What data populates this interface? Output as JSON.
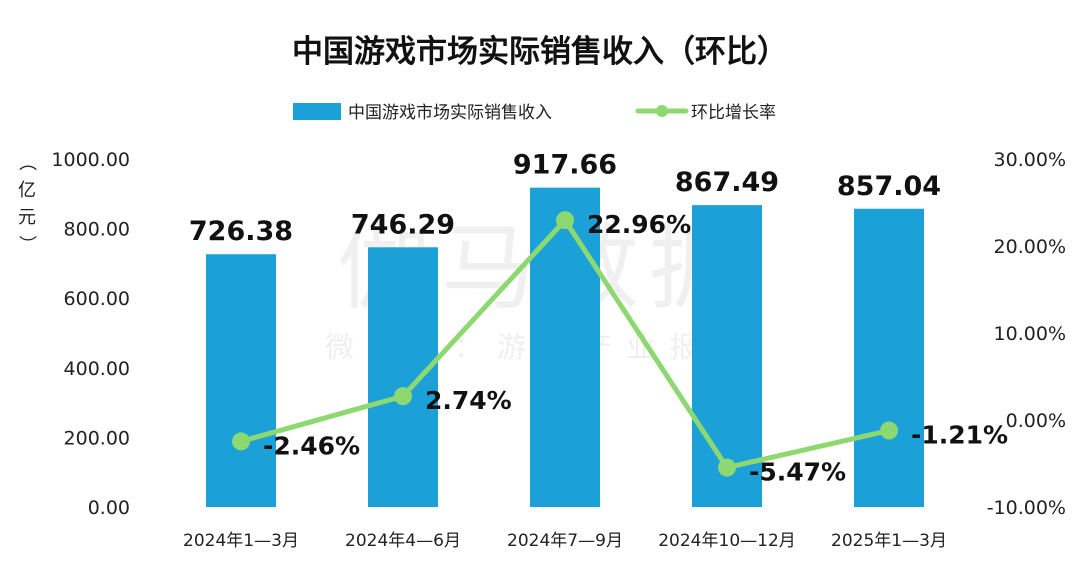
{
  "chart_data": {
    "type": "bar",
    "title": "中国游戏市场实际销售收入（环比）",
    "categories": [
      "2024年1—3月",
      "2024年4—6月",
      "2024年7—9月",
      "2024年10—12月",
      "2025年1—3月"
    ],
    "series": [
      {
        "name": "中国游戏市场实际销售收入",
        "type": "bar",
        "axis": "left",
        "color": "#1BA1D8",
        "values": [
          726.38,
          746.29,
          917.66,
          867.49,
          857.04
        ],
        "labels": [
          "726.38",
          "746.29",
          "917.66",
          "867.49",
          "857.04"
        ]
      },
      {
        "name": "环比增长率",
        "type": "line",
        "axis": "right",
        "color": "#8DD870",
        "values": [
          -2.46,
          2.74,
          22.96,
          -5.47,
          -1.21
        ],
        "labels": [
          "-2.46%",
          "2.74%",
          "22.96%",
          "-5.47%",
          "-1.21%"
        ]
      }
    ],
    "ylabel": "（亿元）",
    "ylim": [
      0,
      1000
    ],
    "yticks": [
      "0.00",
      "200.00",
      "400.00",
      "600.00",
      "800.00",
      "1000.00"
    ],
    "y2lim": [
      -10,
      30
    ],
    "y2ticks": [
      "-10.00%",
      "0.00%",
      "10.00%",
      "20.00%",
      "30.00%"
    ],
    "legend_position": "top-center",
    "grid": false
  },
  "watermark": {
    "main": "伽马数据",
    "sub": "微信号：游戏产业报告"
  }
}
